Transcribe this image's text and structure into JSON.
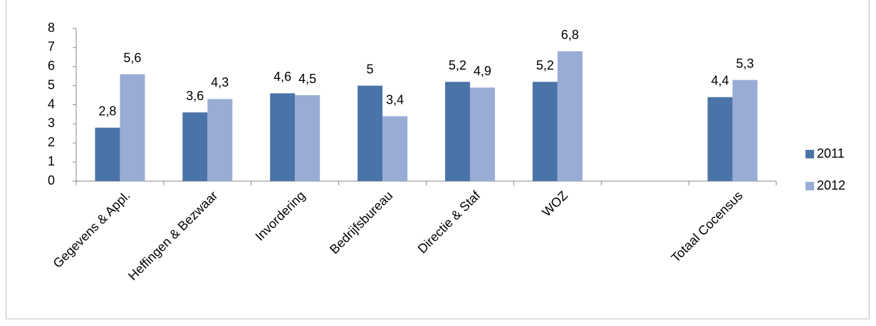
{
  "chart_data": {
    "type": "bar",
    "categories": [
      "Gegevens & Appl.",
      "Heffingen & Bezwaar",
      "Invordering",
      "Bedrijfsbureau",
      "Directie & Staf",
      "WOZ",
      null,
      "Totaal Cocensus"
    ],
    "series": [
      {
        "name": "2011",
        "color": "#4a74a8",
        "values": [
          2.8,
          3.6,
          4.6,
          5,
          5.2,
          5.2,
          null,
          4.4
        ],
        "value_labels": [
          "2,8",
          "3,6",
          "4,6",
          "5",
          "5,2",
          "5,2",
          null,
          "4,4"
        ]
      },
      {
        "name": "2012",
        "color": "#98acd5",
        "values": [
          5.6,
          4.3,
          4.5,
          3.4,
          4.9,
          6.8,
          null,
          5.3
        ],
        "value_labels": [
          "5,6",
          "4,3",
          "4,5",
          "3,4",
          "4,9",
          "6,8",
          null,
          "5,3"
        ]
      }
    ],
    "ylim": [
      0,
      8
    ],
    "yticks": [
      0,
      1,
      2,
      3,
      4,
      5,
      6,
      7,
      8
    ],
    "legend": "right"
  }
}
